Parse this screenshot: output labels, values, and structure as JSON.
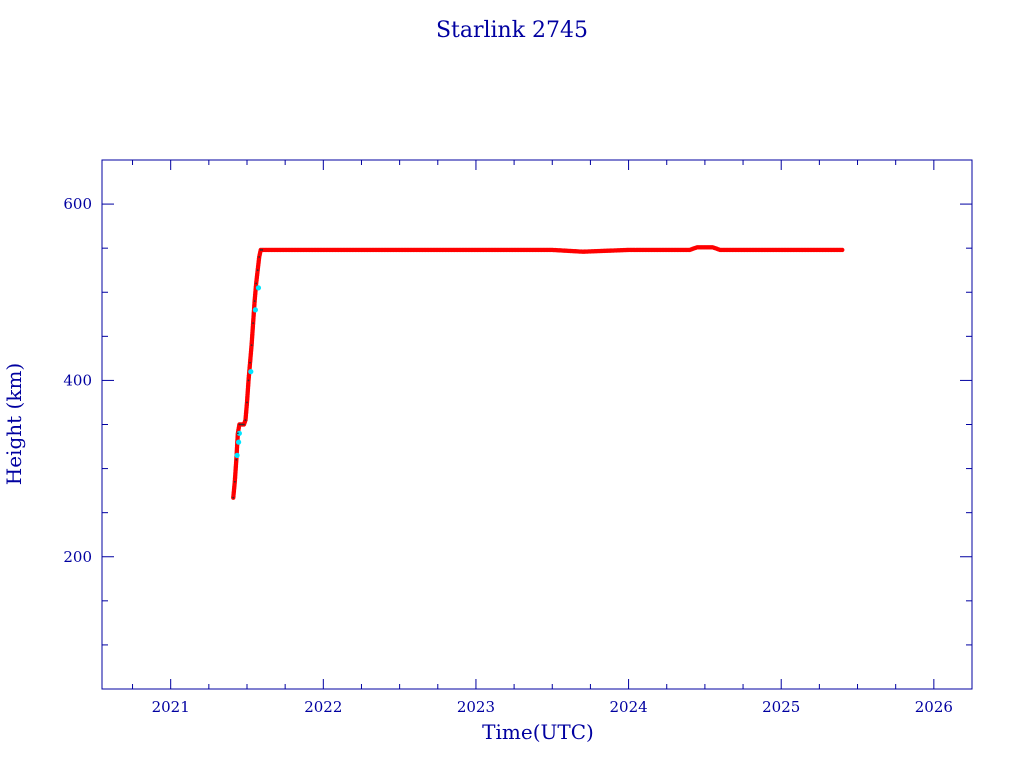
{
  "chart_data": {
    "type": "scatter",
    "title": "Starlink 2745",
    "xlabel": "Time(UTC)",
    "ylabel": "Height (km)",
    "xlim": [
      2020.55,
      2026.25
    ],
    "ylim": [
      50,
      650
    ],
    "x_major_ticks": [
      2021,
      2022,
      2023,
      2024,
      2025,
      2026
    ],
    "x_tick_labels": [
      "2021",
      "2022",
      "2023",
      "2024",
      "2025",
      "2026"
    ],
    "x_minor_ticks": [
      2020.75,
      2021.25,
      2021.5,
      2021.75,
      2022.25,
      2022.5,
      2022.75,
      2023.25,
      2023.5,
      2023.75,
      2024.25,
      2024.5,
      2024.75,
      2025.25,
      2025.5,
      2025.75,
      2026.25
    ],
    "y_major_ticks": [
      200,
      400,
      600
    ],
    "y_tick_labels": [
      "200",
      "400",
      "600"
    ],
    "y_minor_ticks": [
      100,
      150,
      250,
      300,
      350,
      450,
      500,
      550
    ],
    "grid": false,
    "series": [
      {
        "color": "#ff0000",
        "marker": "star",
        "x": [
          2021.41,
          2021.42,
          2021.43,
          2021.44,
          2021.45,
          2021.46,
          2021.47,
          2021.48,
          2021.49,
          2021.5,
          2021.51,
          2021.52,
          2021.53,
          2021.54,
          2021.55,
          2021.56,
          2021.57,
          2021.58,
          2021.59,
          2021.6,
          2021.8,
          2022.0,
          2022.5,
          2023.0,
          2023.5,
          2023.7,
          2024.0,
          2024.3,
          2024.4,
          2024.45,
          2024.5,
          2024.55,
          2024.6,
          2024.8,
          2025.0,
          2025.2,
          2025.4
        ],
        "y": [
          267,
          285,
          310,
          340,
          350,
          350,
          350,
          350,
          355,
          375,
          400,
          420,
          440,
          465,
          490,
          510,
          525,
          540,
          548,
          548,
          548,
          548,
          548,
          548,
          548,
          546,
          548,
          548,
          548,
          551,
          551,
          551,
          548,
          548,
          548,
          548,
          548
        ]
      },
      {
        "color": "#00e5ff",
        "marker": "dot",
        "x": [
          2021.435,
          2021.445,
          2021.45,
          2021.525,
          2021.555,
          2021.575
        ],
        "y": [
          315,
          330,
          340,
          410,
          480,
          505
        ]
      }
    ]
  }
}
